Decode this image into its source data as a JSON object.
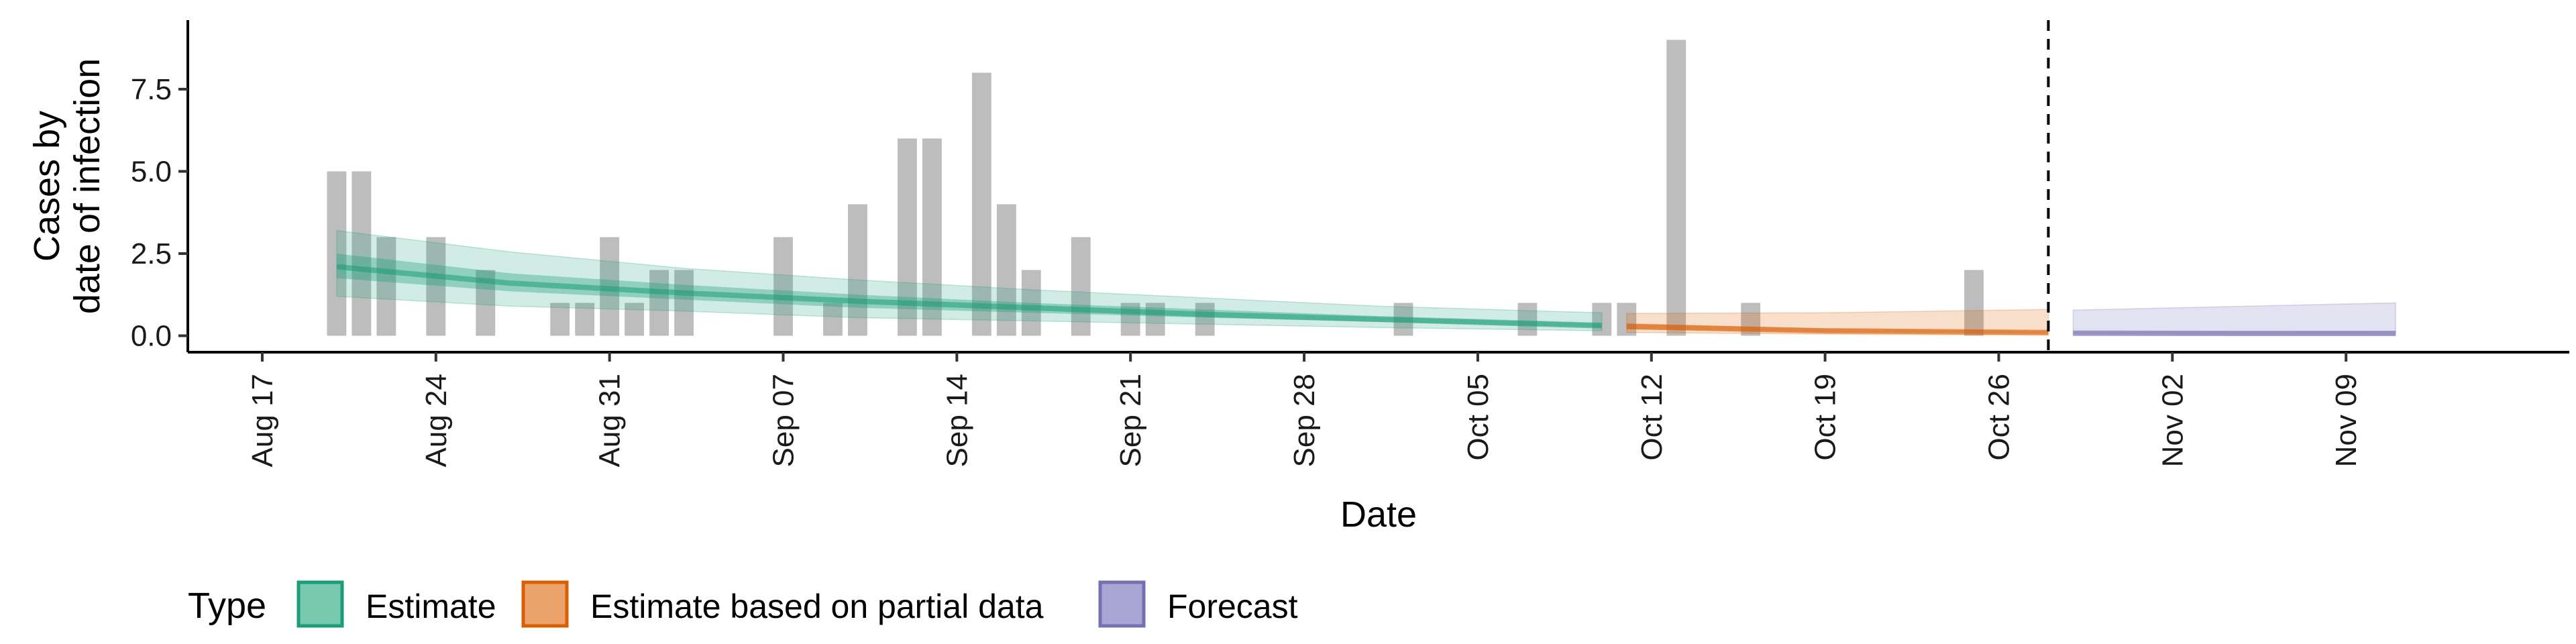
{
  "chart_data": {
    "type": "bar",
    "title": "",
    "xlabel": "Date",
    "ylabel_lines": [
      "Cases by",
      "date of infection"
    ],
    "x_range": [
      "2020-08-14",
      "2020-11-18"
    ],
    "ylim": [
      -0.5,
      9.6
    ],
    "y_ticks": [
      0.0,
      2.5,
      5.0,
      7.5
    ],
    "y_tick_labels": [
      "0.0",
      "2.5",
      "5.0",
      "7.5"
    ],
    "x_ticks": [
      {
        "date": "2020-08-17",
        "label": "Aug 17"
      },
      {
        "date": "2020-08-24",
        "label": "Aug 24"
      },
      {
        "date": "2020-08-31",
        "label": "Aug 31"
      },
      {
        "date": "2020-09-07",
        "label": "Sep 07"
      },
      {
        "date": "2020-09-14",
        "label": "Sep 14"
      },
      {
        "date": "2020-09-21",
        "label": "Sep 21"
      },
      {
        "date": "2020-09-28",
        "label": "Sep 28"
      },
      {
        "date": "2020-10-05",
        "label": "Oct 05"
      },
      {
        "date": "2020-10-12",
        "label": "Oct 12"
      },
      {
        "date": "2020-10-19",
        "label": "Oct 19"
      },
      {
        "date": "2020-10-26",
        "label": "Oct 26"
      },
      {
        "date": "2020-11-02",
        "label": "Nov 02"
      },
      {
        "date": "2020-11-09",
        "label": "Nov 09"
      }
    ],
    "grid": false,
    "bar_color": "#bdbdbd",
    "cases": [
      {
        "date": "2020-08-20",
        "value": 5
      },
      {
        "date": "2020-08-21",
        "value": 5
      },
      {
        "date": "2020-08-22",
        "value": 3
      },
      {
        "date": "2020-08-24",
        "value": 3
      },
      {
        "date": "2020-08-26",
        "value": 2
      },
      {
        "date": "2020-08-29",
        "value": 1
      },
      {
        "date": "2020-08-30",
        "value": 1
      },
      {
        "date": "2020-08-31",
        "value": 3
      },
      {
        "date": "2020-09-01",
        "value": 1
      },
      {
        "date": "2020-09-02",
        "value": 2
      },
      {
        "date": "2020-09-03",
        "value": 2
      },
      {
        "date": "2020-09-07",
        "value": 3
      },
      {
        "date": "2020-09-09",
        "value": 1
      },
      {
        "date": "2020-09-10",
        "value": 4
      },
      {
        "date": "2020-09-12",
        "value": 6
      },
      {
        "date": "2020-09-13",
        "value": 6
      },
      {
        "date": "2020-09-15",
        "value": 8
      },
      {
        "date": "2020-09-16",
        "value": 4
      },
      {
        "date": "2020-09-17",
        "value": 2
      },
      {
        "date": "2020-09-19",
        "value": 3
      },
      {
        "date": "2020-09-21",
        "value": 1
      },
      {
        "date": "2020-09-22",
        "value": 1
      },
      {
        "date": "2020-09-24",
        "value": 1
      },
      {
        "date": "2020-10-02",
        "value": 1
      },
      {
        "date": "2020-10-07",
        "value": 1
      },
      {
        "date": "2020-10-10",
        "value": 1
      },
      {
        "date": "2020-10-11",
        "value": 1
      },
      {
        "date": "2020-10-13",
        "value": 9
      },
      {
        "date": "2020-10-16",
        "value": 1
      },
      {
        "date": "2020-10-25",
        "value": 2
      }
    ],
    "vline_date": "2020-10-28",
    "series": [
      {
        "name": "Estimate",
        "color": "#1b9e77",
        "points": [
          {
            "date": "2020-08-20",
            "median": 2.1,
            "lo50": 1.75,
            "hi50": 2.5,
            "lo90": 1.2,
            "hi90": 3.2
          },
          {
            "date": "2020-08-27",
            "median": 1.6,
            "lo50": 1.35,
            "hi50": 1.9,
            "lo90": 0.9,
            "hi90": 2.55
          },
          {
            "date": "2020-09-03",
            "median": 1.3,
            "lo50": 1.1,
            "hi50": 1.55,
            "lo90": 0.75,
            "hi90": 2.05
          },
          {
            "date": "2020-09-10",
            "median": 1.05,
            "lo50": 0.85,
            "hi50": 1.25,
            "lo90": 0.55,
            "hi90": 1.7
          },
          {
            "date": "2020-09-17",
            "median": 0.85,
            "lo50": 0.7,
            "hi50": 1.0,
            "lo90": 0.45,
            "hi90": 1.4
          },
          {
            "date": "2020-09-24",
            "median": 0.65,
            "lo50": 0.55,
            "hi50": 0.8,
            "lo90": 0.35,
            "hi90": 1.15
          },
          {
            "date": "2020-10-01",
            "median": 0.5,
            "lo50": 0.42,
            "hi50": 0.6,
            "lo90": 0.25,
            "hi90": 0.9
          },
          {
            "date": "2020-10-10",
            "median": 0.3,
            "lo50": 0.25,
            "hi50": 0.4,
            "lo90": 0.15,
            "hi90": 0.7
          }
        ]
      },
      {
        "name": "Estimate based on partial data",
        "color": "#d95f02",
        "points": [
          {
            "date": "2020-10-11",
            "median": 0.28,
            "lo50": 0.2,
            "hi50": 0.38,
            "lo90": 0.1,
            "hi90": 0.68
          },
          {
            "date": "2020-10-19",
            "median": 0.15,
            "lo50": 0.1,
            "hi50": 0.22,
            "lo90": 0.05,
            "hi90": 0.7
          },
          {
            "date": "2020-10-28",
            "median": 0.1,
            "lo50": 0.06,
            "hi50": 0.15,
            "lo90": 0.02,
            "hi90": 0.8
          }
        ]
      },
      {
        "name": "Forecast",
        "color": "#7570b3",
        "points": [
          {
            "date": "2020-10-29",
            "median": 0.08,
            "lo50": 0.04,
            "hi50": 0.14,
            "lo90": 0.01,
            "hi90": 0.78
          },
          {
            "date": "2020-11-05",
            "median": 0.07,
            "lo50": 0.03,
            "hi50": 0.14,
            "lo90": 0.01,
            "hi90": 0.9
          },
          {
            "date": "2020-11-11",
            "median": 0.07,
            "lo50": 0.03,
            "hi50": 0.15,
            "lo90": 0.01,
            "hi90": 1.0
          }
        ]
      }
    ],
    "legend": {
      "title": "Type",
      "placement": "bottom-left",
      "entries": [
        {
          "label": "Estimate",
          "fill": "#78c8ad",
          "stroke": "#1b9e77"
        },
        {
          "label": "Estimate based on partial data",
          "fill": "#eca36b",
          "stroke": "#d95f02"
        },
        {
          "label": "Forecast",
          "fill": "#a9a6d3",
          "stroke": "#7570b3"
        }
      ]
    }
  }
}
